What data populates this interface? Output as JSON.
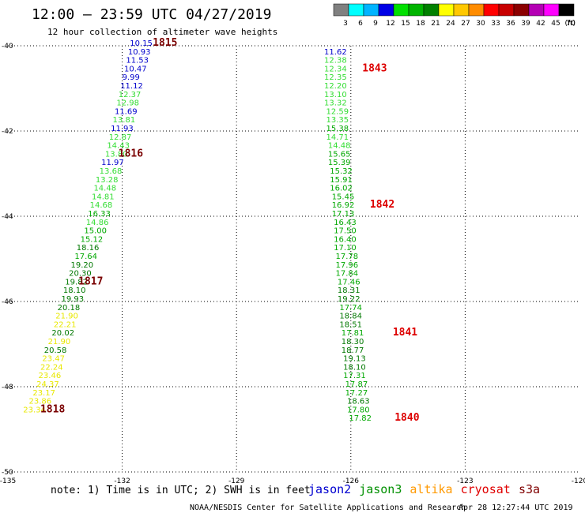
{
  "title": "12:00 – 23:59 UTC 04/27/2019",
  "subtitle": "12 hour collection of altimeter wave heights",
  "colorbar": {
    "unit": "(ft)",
    "labels": [
      "3",
      "6",
      "9",
      "12",
      "15",
      "18",
      "21",
      "24",
      "27",
      "30",
      "33",
      "36",
      "39",
      "42",
      "45",
      "70"
    ],
    "colors": [
      "#808080",
      "#00ffff",
      "#00b4ff",
      "#0000e6",
      "#00e000",
      "#00b400",
      "#008000",
      "#ffff00",
      "#ffc800",
      "#ff8c00",
      "#ff0000",
      "#c80000",
      "#8b0000",
      "#b400b4",
      "#ff00ff",
      "#000000"
    ]
  },
  "note": "note: 1) Time is in UTC; 2) SWH is in feet",
  "legend": [
    {
      "name": "jason2",
      "color": "#0000d0"
    },
    {
      "name": "jason3",
      "color": "#009000"
    },
    {
      "name": "altika",
      "color": "#ff9900"
    },
    {
      "name": "cryosat",
      "color": "#e00000"
    },
    {
      "name": "s3a",
      "color": "#800000"
    }
  ],
  "footer_left": "NOAA/NESDIS Center for Satellite Applications and Research",
  "footer_right": "Apr 28 12:27:44 UTC 2019",
  "chart_data": {
    "type": "scatter",
    "title": "12:00 – 23:59 UTC 04/27/2019",
    "xlim": [
      -135,
      -120
    ],
    "ylim": [
      -50,
      -40
    ],
    "xticks": [
      -135,
      -132,
      -129,
      -126,
      -123,
      -120
    ],
    "yticks": [
      -40,
      -42,
      -44,
      -46,
      -48,
      -50
    ],
    "grid": true,
    "tracks": [
      {
        "name": "jason3",
        "points": [
          {
            "lon": -131.8,
            "lat": -40.0,
            "swh": "10.15"
          },
          {
            "lon": -131.85,
            "lat": -40.2,
            "swh": "10.93"
          },
          {
            "lon": -131.9,
            "lat": -40.4,
            "swh": "11.53"
          },
          {
            "lon": -131.95,
            "lat": -40.6,
            "swh": "10.47"
          },
          {
            "lon": -132.0,
            "lat": -40.8,
            "swh": "9.99"
          },
          {
            "lon": -132.05,
            "lat": -41.0,
            "swh": "11.12"
          },
          {
            "lon": -132.1,
            "lat": -41.2,
            "swh": "12.37"
          },
          {
            "lon": -132.15,
            "lat": -41.4,
            "swh": "12.98"
          },
          {
            "lon": -132.2,
            "lat": -41.6,
            "swh": "11.69"
          },
          {
            "lon": -132.25,
            "lat": -41.8,
            "swh": "13.81"
          },
          {
            "lon": -132.3,
            "lat": -42.0,
            "swh": "11.93"
          },
          {
            "lon": -132.35,
            "lat": -42.2,
            "swh": "12.87"
          },
          {
            "lon": -132.4,
            "lat": -42.4,
            "swh": "14.43"
          },
          {
            "lon": -132.45,
            "lat": -42.6,
            "swh": "13.80"
          },
          {
            "lon": -132.55,
            "lat": -42.8,
            "swh": "11.97"
          },
          {
            "lon": -132.6,
            "lat": -43.0,
            "swh": "13.68"
          },
          {
            "lon": -132.7,
            "lat": -43.2,
            "swh": "13.28"
          },
          {
            "lon": -132.75,
            "lat": -43.4,
            "swh": "14.48"
          },
          {
            "lon": -132.8,
            "lat": -43.6,
            "swh": "14.81"
          },
          {
            "lon": -132.85,
            "lat": -43.8,
            "swh": "14.68"
          },
          {
            "lon": -132.9,
            "lat": -44.0,
            "swh": "16.33"
          },
          {
            "lon": -132.95,
            "lat": -44.2,
            "swh": "14.86"
          },
          {
            "lon": -133.0,
            "lat": -44.4,
            "swh": "15.00"
          },
          {
            "lon": -133.1,
            "lat": -44.6,
            "swh": "15.12"
          },
          {
            "lon": -133.2,
            "lat": -44.8,
            "swh": "18.16"
          },
          {
            "lon": -133.25,
            "lat": -45.0,
            "swh": "17.64"
          },
          {
            "lon": -133.35,
            "lat": -45.2,
            "swh": "19.20"
          },
          {
            "lon": -133.4,
            "lat": -45.4,
            "swh": "20.30"
          },
          {
            "lon": -133.5,
            "lat": -45.6,
            "swh": "19.82"
          },
          {
            "lon": -133.55,
            "lat": -45.8,
            "swh": "18.10"
          },
          {
            "lon": -133.6,
            "lat": -46.0,
            "swh": "19.93"
          },
          {
            "lon": -133.7,
            "lat": -46.2,
            "swh": "20.18"
          },
          {
            "lon": -133.75,
            "lat": -46.4,
            "swh": "21.90"
          },
          {
            "lon": -133.8,
            "lat": -46.6,
            "swh": "22.21"
          },
          {
            "lon": -133.85,
            "lat": -46.8,
            "swh": "20.02"
          },
          {
            "lon": -133.95,
            "lat": -47.0,
            "swh": "21.90"
          },
          {
            "lon": -134.05,
            "lat": -47.2,
            "swh": "20.58"
          },
          {
            "lon": -134.1,
            "lat": -47.4,
            "swh": "23.47"
          },
          {
            "lon": -134.15,
            "lat": -47.6,
            "swh": "22.24"
          },
          {
            "lon": -134.2,
            "lat": -47.8,
            "swh": "23.46"
          },
          {
            "lon": -134.25,
            "lat": -48.0,
            "swh": "24.37"
          },
          {
            "lon": -134.35,
            "lat": -48.2,
            "swh": "23.17"
          },
          {
            "lon": -134.45,
            "lat": -48.4,
            "swh": "23.86"
          },
          {
            "lon": -134.6,
            "lat": -48.6,
            "swh": "23.34"
          }
        ],
        "time_labels": [
          {
            "text": "1815",
            "lon": -131.2,
            "lat": -40.0
          },
          {
            "text": "1816",
            "lon": -132.1,
            "lat": -42.6
          },
          {
            "text": "1817",
            "lon": -133.15,
            "lat": -45.6
          },
          {
            "text": "1818",
            "lon": -134.15,
            "lat": -48.6
          }
        ]
      },
      {
        "name": "s3a",
        "points": [
          {
            "lon": -126.7,
            "lat": -40.2,
            "swh": "11.62"
          },
          {
            "lon": -126.7,
            "lat": -40.4,
            "swh": "12.38"
          },
          {
            "lon": -126.7,
            "lat": -40.6,
            "swh": "12.34"
          },
          {
            "lon": -126.7,
            "lat": -40.8,
            "swh": "12.35"
          },
          {
            "lon": -126.7,
            "lat": -41.0,
            "swh": "12.20"
          },
          {
            "lon": -126.7,
            "lat": -41.2,
            "swh": "13.10"
          },
          {
            "lon": -126.7,
            "lat": -41.4,
            "swh": "13.32"
          },
          {
            "lon": -126.65,
            "lat": -41.6,
            "swh": "12.59"
          },
          {
            "lon": -126.65,
            "lat": -41.8,
            "swh": "13.35"
          },
          {
            "lon": -126.65,
            "lat": -42.0,
            "swh": "15.38"
          },
          {
            "lon": -126.65,
            "lat": -42.2,
            "swh": "14.71"
          },
          {
            "lon": -126.6,
            "lat": -42.4,
            "swh": "14.48"
          },
          {
            "lon": -126.6,
            "lat": -42.6,
            "swh": "15.65"
          },
          {
            "lon": -126.6,
            "lat": -42.8,
            "swh": "15.39"
          },
          {
            "lon": -126.55,
            "lat": -43.0,
            "swh": "15.32"
          },
          {
            "lon": -126.55,
            "lat": -43.2,
            "swh": "15.91"
          },
          {
            "lon": -126.55,
            "lat": -43.4,
            "swh": "16.02"
          },
          {
            "lon": -126.5,
            "lat": -43.6,
            "swh": "15.45"
          },
          {
            "lon": -126.5,
            "lat": -43.8,
            "swh": "16.92"
          },
          {
            "lon": -126.5,
            "lat": -44.0,
            "swh": "17.13"
          },
          {
            "lon": -126.45,
            "lat": -44.2,
            "swh": "16.43"
          },
          {
            "lon": -126.45,
            "lat": -44.4,
            "swh": "17.50"
          },
          {
            "lon": -126.45,
            "lat": -44.6,
            "swh": "16.40"
          },
          {
            "lon": -126.45,
            "lat": -44.8,
            "swh": "17.10"
          },
          {
            "lon": -126.4,
            "lat": -45.0,
            "swh": "17.78"
          },
          {
            "lon": -126.4,
            "lat": -45.2,
            "swh": "17.96"
          },
          {
            "lon": -126.4,
            "lat": -45.4,
            "swh": "17.84"
          },
          {
            "lon": -126.35,
            "lat": -45.6,
            "swh": "17.46"
          },
          {
            "lon": -126.35,
            "lat": -45.8,
            "swh": "18.31"
          },
          {
            "lon": -126.35,
            "lat": -46.0,
            "swh": "19.22"
          },
          {
            "lon": -126.3,
            "lat": -46.2,
            "swh": "17.74"
          },
          {
            "lon": -126.3,
            "lat": -46.4,
            "swh": "18.84"
          },
          {
            "lon": -126.3,
            "lat": -46.6,
            "swh": "18.51"
          },
          {
            "lon": -126.25,
            "lat": -46.8,
            "swh": "17.81"
          },
          {
            "lon": -126.25,
            "lat": -47.0,
            "swh": "18.30"
          },
          {
            "lon": -126.25,
            "lat": -47.2,
            "swh": "18.77"
          },
          {
            "lon": -126.2,
            "lat": -47.4,
            "swh": "19.13"
          },
          {
            "lon": -126.2,
            "lat": -47.6,
            "swh": "18.10"
          },
          {
            "lon": -126.2,
            "lat": -47.8,
            "swh": "17.31"
          },
          {
            "lon": -126.15,
            "lat": -48.0,
            "swh": "17.87"
          },
          {
            "lon": -126.15,
            "lat": -48.2,
            "swh": "17.27"
          },
          {
            "lon": -126.1,
            "lat": -48.4,
            "swh": "18.63"
          },
          {
            "lon": -126.1,
            "lat": -48.6,
            "swh": "17.80"
          },
          {
            "lon": -126.05,
            "lat": -48.8,
            "swh": "17.82"
          }
        ],
        "time_labels": [
          {
            "text": "1843",
            "lon": -125.7,
            "lat": -40.6
          },
          {
            "text": "1842",
            "lon": -125.5,
            "lat": -43.8
          },
          {
            "text": "1841",
            "lon": -124.9,
            "lat": -46.8
          },
          {
            "text": "1840",
            "lon": -124.85,
            "lat": -48.8
          }
        ]
      }
    ]
  }
}
